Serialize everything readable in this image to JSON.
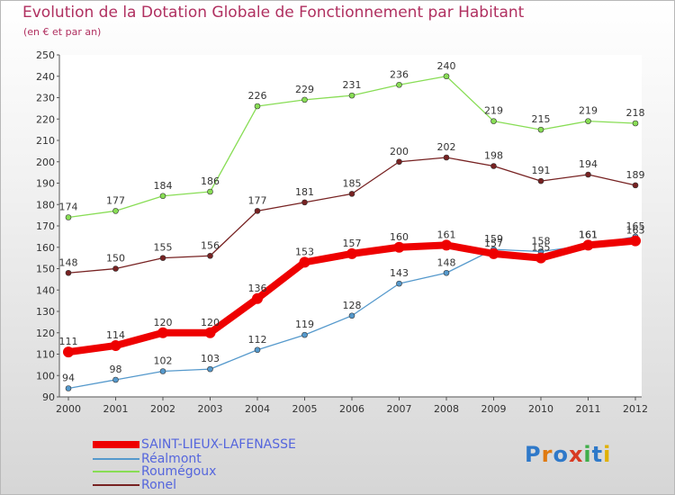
{
  "title": "Evolution de la Dotation Globale de Fonctionnement par Habitant",
  "subtitle": "(en € et par an)",
  "logo_text": "Proxiti",
  "chart_data": {
    "type": "line",
    "x": [
      "2000",
      "2001",
      "2002",
      "2003",
      "2004",
      "2005",
      "2006",
      "2007",
      "2008",
      "2009",
      "2010",
      "2011",
      "2012"
    ],
    "ylim": [
      90,
      250
    ],
    "yticks": [
      90,
      100,
      110,
      120,
      130,
      140,
      150,
      160,
      170,
      180,
      190,
      200,
      210,
      220,
      230,
      240,
      250
    ],
    "grid": false,
    "legend_position": "bottom-left",
    "series": [
      {
        "name": "SAINT-LIEUX-LAFENASSE",
        "color": "#ee0000",
        "values": [
          111,
          114,
          120,
          120,
          136,
          153,
          157,
          160,
          161,
          157,
          155,
          161,
          163
        ]
      },
      {
        "name": "Réalmont",
        "color": "#5599cc",
        "values": [
          94,
          98,
          102,
          103,
          112,
          119,
          128,
          143,
          148,
          159,
          158,
          161,
          165
        ]
      },
      {
        "name": "Roumégoux",
        "color": "#88dd55",
        "values": [
          174,
          177,
          184,
          186,
          226,
          229,
          231,
          236,
          240,
          219,
          215,
          219,
          218
        ]
      },
      {
        "name": "Ronel",
        "color": "#772222",
        "values": [
          148,
          150,
          155,
          156,
          177,
          181,
          185,
          200,
          202,
          198,
          191,
          194,
          189
        ]
      }
    ]
  }
}
